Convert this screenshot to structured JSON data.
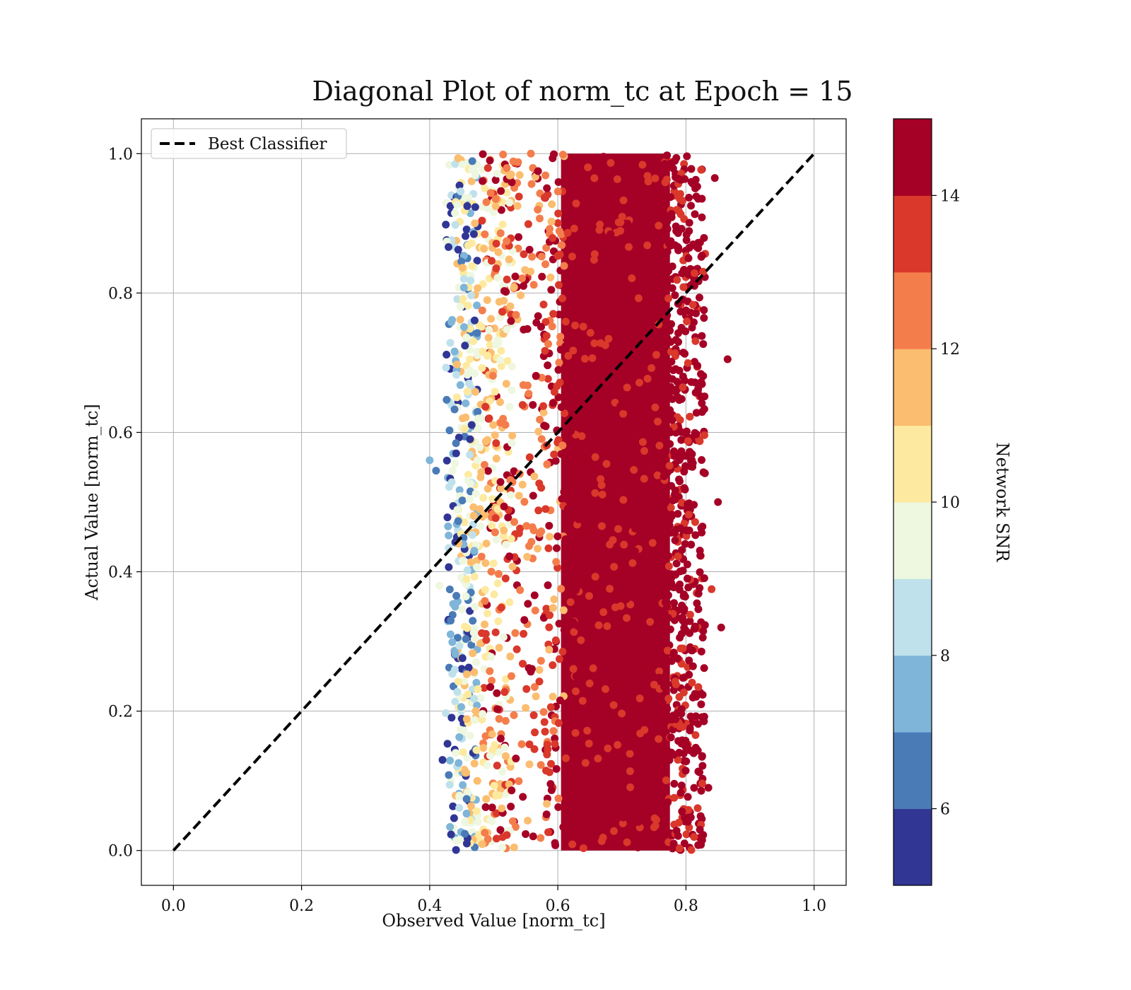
{
  "chart_data": {
    "type": "scatter",
    "title": "Diagonal Plot of norm_tc at Epoch = 15",
    "xlabel": "Observed Value [norm_tc]",
    "ylabel": "Actual Value [norm_tc]",
    "xlim": [
      -0.05,
      1.05
    ],
    "ylim": [
      -0.05,
      1.05
    ],
    "xticks": [
      "0.0",
      "0.2",
      "0.4",
      "0.6",
      "0.8",
      "1.0"
    ],
    "yticks": [
      "0.0",
      "0.2",
      "0.4",
      "0.6",
      "0.8",
      "1.0"
    ],
    "grid": true,
    "legend": {
      "placement": "upper-left",
      "entries": [
        "Best Classifier"
      ]
    },
    "reference_line": {
      "name": "Best Classifier",
      "style": "dashed",
      "color": "#000000",
      "x": [
        0.0,
        1.0
      ],
      "y": [
        0.0,
        1.0
      ]
    },
    "scatter_summary": {
      "x_range_approx": [
        0.4,
        0.86
      ],
      "y_range": [
        0.0,
        1.0
      ],
      "x_trend": "low-SNR points at observed 0.42–0.50, mid-SNR at 0.48–0.62, high-SNR (>=14) dense band at 0.60–0.84",
      "colored_by": "Network SNR"
    },
    "colorbar": {
      "label": "Network SNR",
      "range": [
        5,
        15
      ],
      "ticks": [
        "6",
        "8",
        "10",
        "12",
        "14"
      ],
      "colormap": "RdYlBu_r (discrete, 10 bins)",
      "bins": [
        {
          "from": 5,
          "to": 6,
          "color": "#313695"
        },
        {
          "from": 6,
          "to": 7,
          "color": "#4a7bb7"
        },
        {
          "from": 7,
          "to": 8,
          "color": "#7fb5d8"
        },
        {
          "from": 8,
          "to": 9,
          "color": "#bfe1ec"
        },
        {
          "from": 9,
          "to": 10,
          "color": "#eef7df"
        },
        {
          "from": 10,
          "to": 11,
          "color": "#fdeaa0"
        },
        {
          "from": 11,
          "to": 12,
          "color": "#fbbd6f"
        },
        {
          "from": 12,
          "to": 13,
          "color": "#f47d4c"
        },
        {
          "from": 13,
          "to": 14,
          "color": "#d9382b"
        },
        {
          "from": 14,
          "to": 15,
          "color": "#a50026"
        }
      ]
    }
  }
}
